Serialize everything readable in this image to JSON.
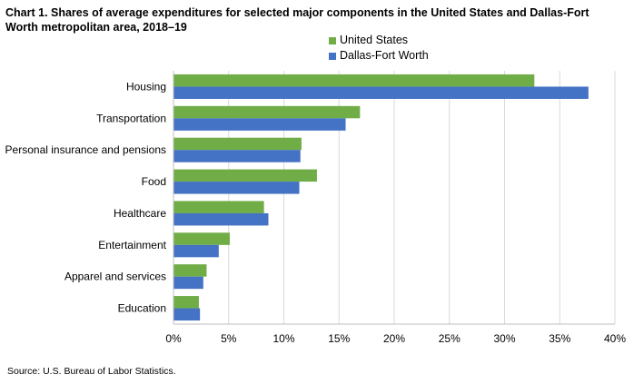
{
  "chart_data": {
    "type": "bar",
    "orientation": "horizontal",
    "title": "Chart 1. Shares of average expenditures for selected major components  in the United  States and Dallas-Fort Worth metropolitan area, 2018–19",
    "categories": [
      "Housing",
      "Transportation",
      "Personal insurance and pensions",
      "Food",
      "Healthcare",
      "Entertainment",
      "Apparel and services",
      "Education"
    ],
    "series": [
      {
        "name": "United States",
        "color": "#70ad47",
        "values": [
          32.7,
          16.9,
          11.6,
          13.0,
          8.2,
          5.1,
          3.0,
          2.3
        ]
      },
      {
        "name": "Dallas-Fort Worth",
        "color": "#4472c4",
        "values": [
          37.6,
          15.6,
          11.5,
          11.4,
          8.6,
          4.1,
          2.7,
          2.4
        ]
      }
    ],
    "xlim": [
      0,
      40
    ],
    "xticks": [
      0,
      5,
      10,
      15,
      20,
      25,
      30,
      35,
      40
    ],
    "xtick_labels": [
      "0%",
      "5%",
      "10%",
      "15%",
      "20%",
      "25%",
      "30%",
      "35%",
      "40%"
    ],
    "grid": "vertical",
    "legend": "top-center",
    "xlabel": "",
    "ylabel": ""
  },
  "source": "Source: U.S. Bureau of Labor Statistics."
}
